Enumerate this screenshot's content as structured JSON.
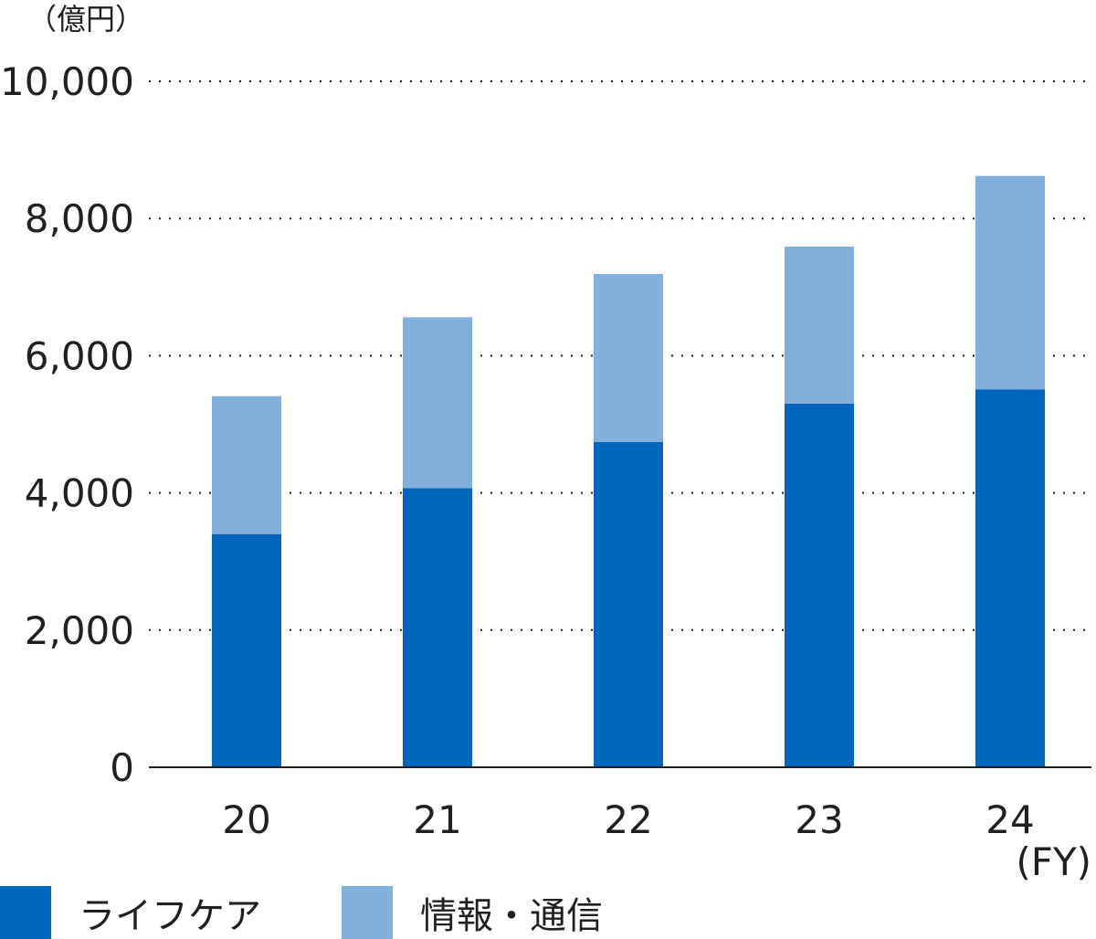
{
  "chart_data": {
    "type": "bar",
    "stacked": true,
    "title": "",
    "unit_label": "（億円）",
    "x_unit_label": "(FY)",
    "categories": [
      "20",
      "21",
      "22",
      "23",
      "24"
    ],
    "series": [
      {
        "name": "ライフケア",
        "color": "#0066bd",
        "values": [
          3400,
          4070,
          4740,
          5300,
          5510
        ]
      },
      {
        "name": "情報・通信",
        "color": "#80b0db",
        "values": [
          2010,
          2490,
          2450,
          2290,
          3110
        ]
      }
    ],
    "ylim": [
      0,
      10000
    ],
    "y_ticks": [
      "0",
      "2,000",
      "4,000",
      "6,000",
      "8,000",
      "10,000"
    ],
    "y_tick_values": [
      0,
      2000,
      4000,
      6000,
      8000,
      10000
    ],
    "grid": "dotted",
    "legend_position": "bottom-left"
  }
}
